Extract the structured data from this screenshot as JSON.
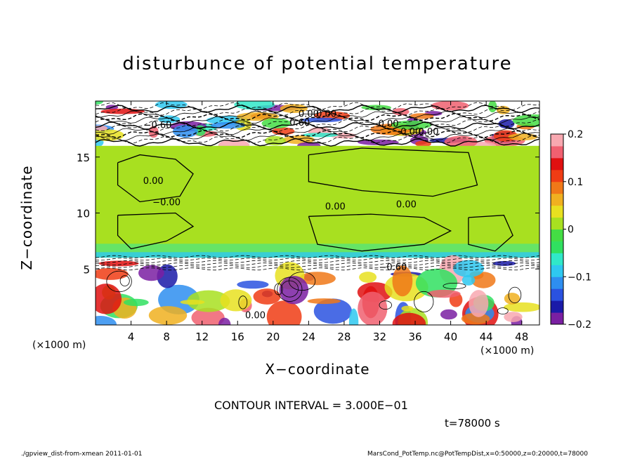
{
  "chart_data": {
    "type": "heatmap",
    "title": "disturbunce of potential temperature",
    "xlabel": "X−coordinate",
    "ylabel": "Z−coordinate",
    "x_unit_label": "(×1000 m)",
    "x_unit_label_right": "(×1000 m)",
    "xlim": [
      0,
      50
    ],
    "ylim": [
      0,
      20
    ],
    "x_ticks": [
      4,
      8,
      12,
      16,
      20,
      24,
      28,
      32,
      36,
      40,
      44,
      48
    ],
    "y_ticks": [
      5,
      10,
      15
    ],
    "colorbar": {
      "range": [
        -0.2,
        0.2
      ],
      "ticks": [
        0.2,
        0.1,
        0,
        -0.1,
        -0.2
      ],
      "tick_labels": [
        "0.2",
        "0.1",
        "0",
        "−0.1",
        "−0.2"
      ],
      "colors": [
        "#7a1fa2",
        "#1a1aa8",
        "#2a52e0",
        "#2e8ef0",
        "#2ec8f0",
        "#30e8c8",
        "#30e060",
        "#44dd44",
        "#a8e020",
        "#e8e020",
        "#f0b020",
        "#f07818",
        "#f03c14",
        "#e01010",
        "#f06070",
        "#f8a8b0"
      ]
    },
    "regions": [
      {
        "z_range": [
          16,
          20
        ],
        "pattern": "mixed",
        "value": -0.2
      },
      {
        "z_range": [
          6,
          16
        ],
        "pattern": "near-zero",
        "value": 0.0
      },
      {
        "z_range": [
          5.5,
          6
        ],
        "pattern": "band",
        "value": -0.1
      },
      {
        "z_range": [
          0,
          5.5
        ],
        "pattern": "mixed",
        "value": 0.2
      }
    ],
    "contour_labels": [
      {
        "text": "−0.60",
        "x": 7,
        "z": 17.6
      },
      {
        "text": "0.00",
        "x": 24,
        "z": 18.6
      },
      {
        "text": "0.00",
        "x": 26,
        "z": 18.6
      },
      {
        "text": "0.60",
        "x": 23,
        "z": 17.8
      },
      {
        "text": "0.00",
        "x": 33,
        "z": 17.7
      },
      {
        "text": "0.00",
        "x": 35.5,
        "z": 17.0
      },
      {
        "text": "0.00",
        "x": 37.5,
        "z": 17.0
      },
      {
        "text": "0.00",
        "x": 6.5,
        "z": 12.6
      },
      {
        "text": "−0.00",
        "x": 8,
        "z": 10.7
      },
      {
        "text": "0.00",
        "x": 27,
        "z": 10.3
      },
      {
        "text": "0.00",
        "x": 35,
        "z": 10.5
      },
      {
        "text": "−0.60",
        "x": 33.5,
        "z": 4.9
      },
      {
        "text": "0.00",
        "x": 18,
        "z": 0.6
      }
    ],
    "contour_interval_text": "CONTOUR INTERVAL = 3.000E−01",
    "time_text": "t=78000 s"
  },
  "footer": {
    "left": "./gpview_dist-from-xmean  2011-01-01",
    "right": "MarsCond_PotTemp.nc@PotTempDist,x=0:50000,z=0:20000,t=78000"
  }
}
